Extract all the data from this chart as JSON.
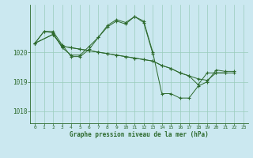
{
  "background_color": "#cbe8f0",
  "grid_color": "#99ccbb",
  "line_color": "#2d6a2d",
  "marker_color": "#2d6a2d",
  "xlabel": "Graphe pression niveau de la mer (hPa)",
  "xlim": [
    -0.5,
    23.5
  ],
  "ylim": [
    1017.6,
    1021.6
  ],
  "yticks": [
    1018,
    1019,
    1020
  ],
  "xticks": [
    0,
    1,
    2,
    3,
    4,
    5,
    6,
    7,
    8,
    9,
    10,
    11,
    12,
    13,
    14,
    15,
    16,
    17,
    18,
    19,
    20,
    21,
    22,
    23
  ],
  "series": [
    {
      "x": [
        0,
        1,
        2,
        3,
        4,
        5,
        6,
        7,
        8,
        9,
        10,
        11,
        12,
        13,
        14,
        15,
        16,
        17,
        18,
        19,
        20,
        21,
        22
      ],
      "y": [
        1020.3,
        1020.7,
        1020.7,
        1020.25,
        1019.85,
        1019.85,
        1020.1,
        1020.5,
        1020.9,
        1021.1,
        1021.0,
        1021.2,
        1021.05,
        1020.0,
        1018.6,
        1018.6,
        1018.45,
        1018.45,
        1018.85,
        1019.0,
        1019.4,
        1019.35,
        1019.35
      ]
    },
    {
      "x": [
        0,
        1,
        2,
        3,
        4,
        5,
        6,
        7,
        8,
        9,
        10,
        11,
        12,
        13
      ],
      "y": [
        1020.3,
        1020.7,
        1020.65,
        1020.15,
        1019.9,
        1019.9,
        1020.2,
        1020.5,
        1020.85,
        1021.05,
        1020.95,
        1021.2,
        1021.0,
        1019.95
      ]
    },
    {
      "x": [
        0,
        2,
        3,
        4,
        5,
        6,
        7,
        8,
        9,
        10,
        11,
        12,
        13,
        14,
        15,
        16,
        17,
        18,
        19,
        20,
        21,
        22
      ],
      "y": [
        1020.3,
        1020.6,
        1020.2,
        1020.15,
        1020.1,
        1020.05,
        1020.0,
        1019.95,
        1019.9,
        1019.85,
        1019.8,
        1019.75,
        1019.7,
        1019.55,
        1019.45,
        1019.3,
        1019.2,
        1019.1,
        1019.05,
        1019.3,
        1019.3,
        1019.3
      ]
    },
    {
      "x": [
        0,
        2,
        3,
        4,
        5,
        6,
        7,
        8,
        9,
        10,
        11,
        12,
        13,
        14,
        15,
        16,
        17,
        18,
        19,
        20,
        21
      ],
      "y": [
        1020.3,
        1020.6,
        1020.2,
        1020.15,
        1020.1,
        1020.05,
        1020.0,
        1019.95,
        1019.9,
        1019.85,
        1019.8,
        1019.75,
        1019.7,
        1019.55,
        1019.45,
        1019.3,
        1019.2,
        1018.9,
        1019.3,
        1019.3,
        1019.3
      ]
    }
  ]
}
